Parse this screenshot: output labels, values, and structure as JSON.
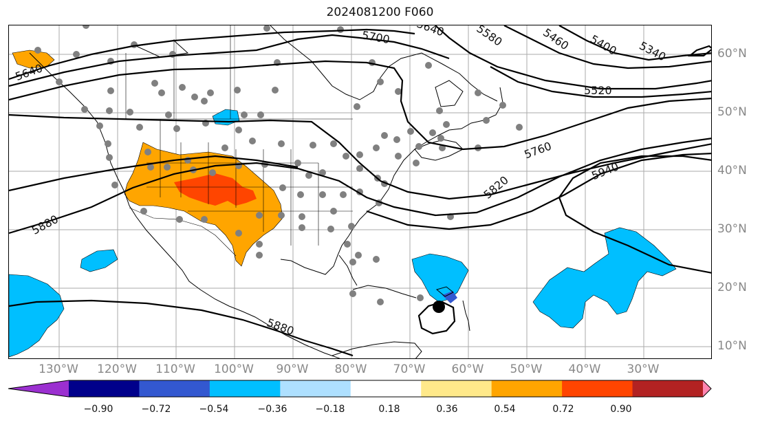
{
  "title": "2024081200 F060",
  "lon_labels": [
    "130°W",
    "120°W",
    "110°W",
    "100°W",
    "90°W",
    "80°W",
    "70°W",
    "60°W",
    "50°W",
    "40°W",
    "30°W"
  ],
  "lat_labels": [
    "60°N",
    "50°N",
    "40°N",
    "30°N",
    "20°N",
    "10°N"
  ],
  "contour_labels": [
    "5640",
    "5700",
    "5640",
    "5580",
    "5460",
    "5400",
    "5340",
    "5520",
    "5760",
    "5940",
    "5820",
    "5880",
    "5880"
  ],
  "colorbar": {
    "ticks": [
      "−0.90",
      "−0.72",
      "−0.54",
      "−0.36",
      "−0.18",
      "0.18",
      "0.36",
      "0.54",
      "0.72",
      "0.90"
    ],
    "colors": [
      "#9b30d0",
      "#00008b",
      "#3358d0",
      "#00bfff",
      "#aee0ff",
      "#ffffff",
      "#ffe98a",
      "#ffa500",
      "#ff4500",
      "#b22222",
      "#ff85b0"
    ]
  },
  "shading_colors": {
    "positive_moderate": "#ffa500",
    "positive_strong": "#ff4500",
    "negative_moderate": "#00bfff",
    "negative_strong": "#3358d0"
  },
  "station_color": "#808080"
}
